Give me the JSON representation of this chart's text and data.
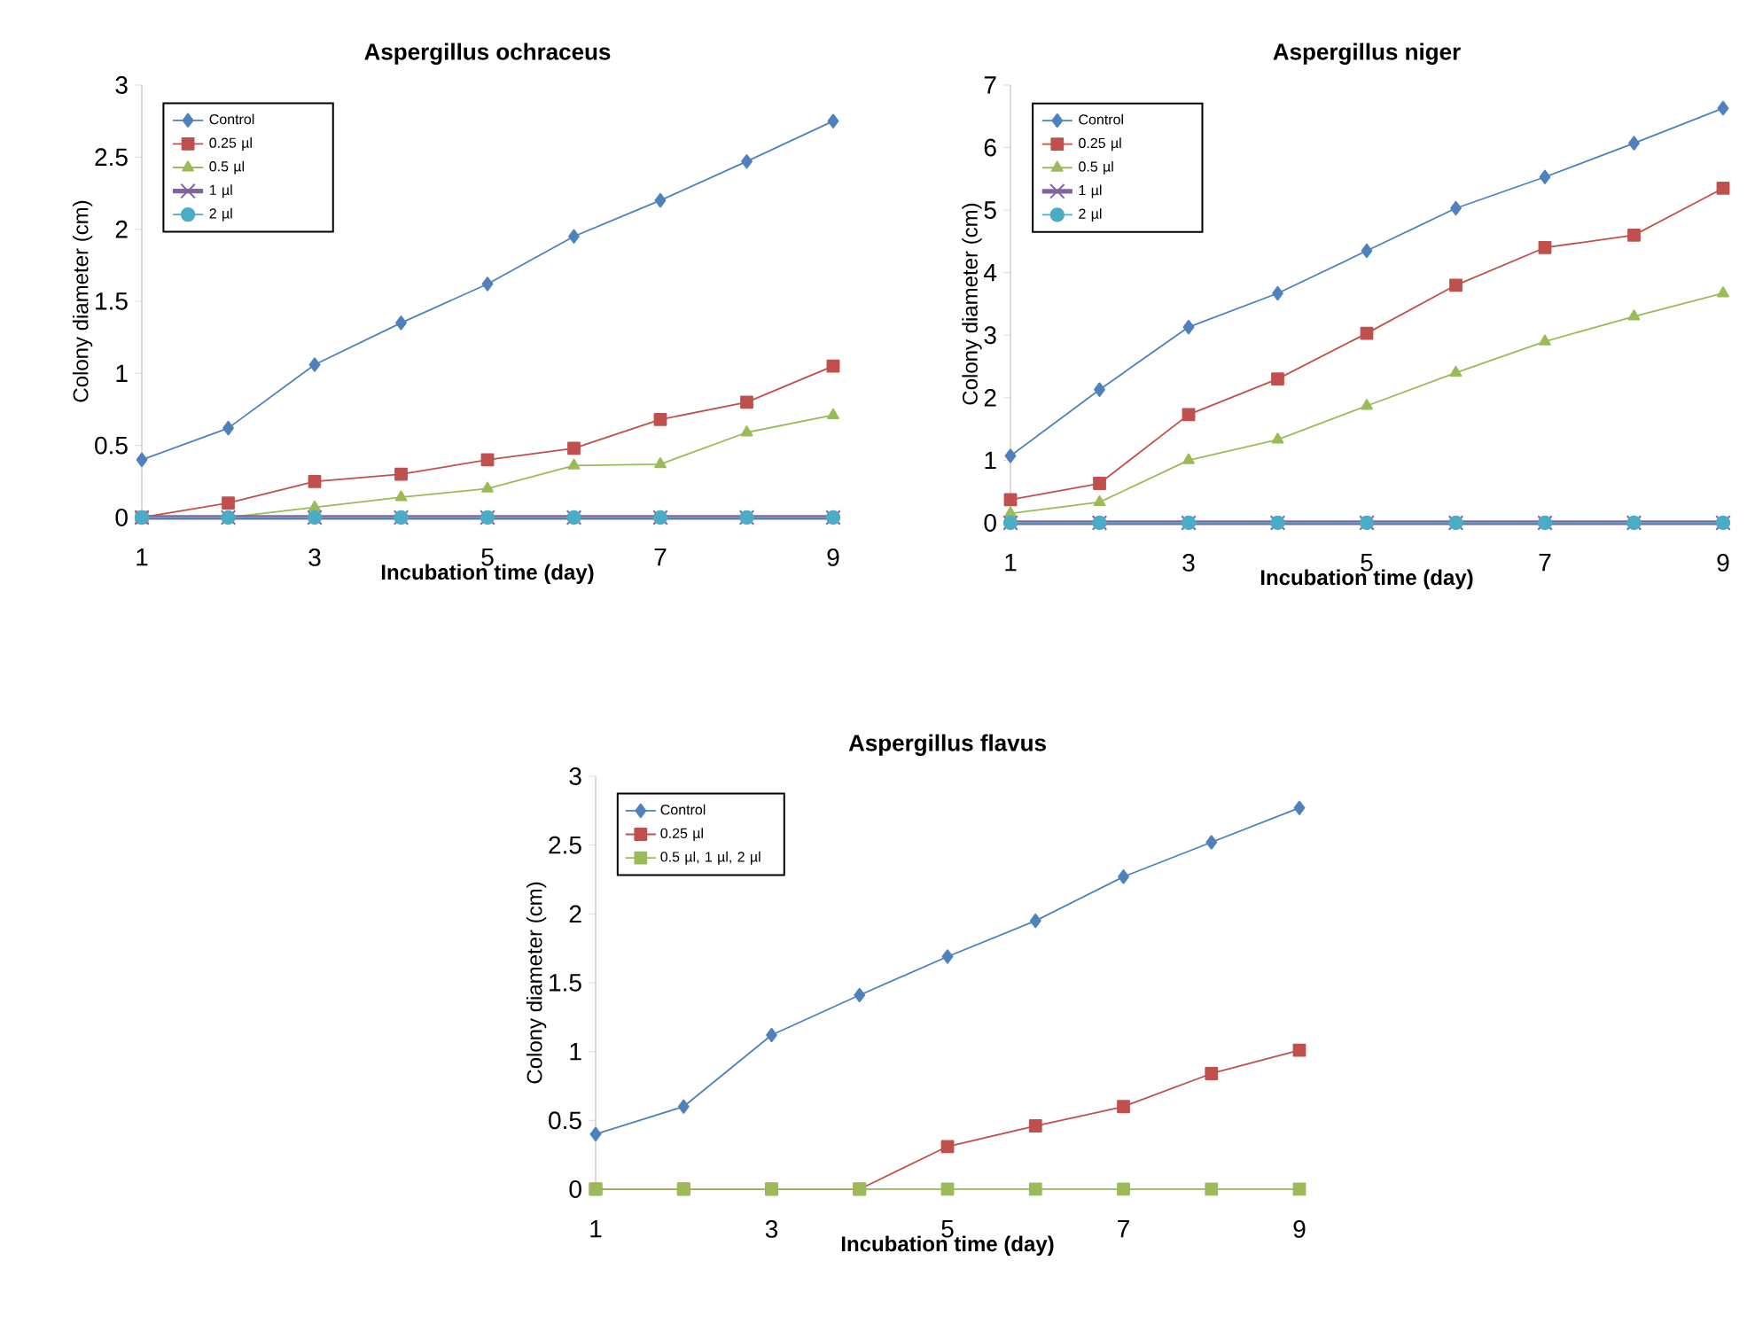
{
  "chart_data": [
    {
      "type": "line",
      "title": "Aspergillus ochraceus",
      "xlabel": "Incubation time (day)",
      "ylabel": "Colony diameter (cm)",
      "x": [
        1,
        2,
        3,
        4,
        5,
        6,
        7,
        8,
        9
      ],
      "xlim": [
        1,
        9
      ],
      "xticks": [
        1,
        3,
        5,
        7,
        9
      ],
      "ylim": [
        0,
        3
      ],
      "yticks": [
        0,
        0.5,
        1,
        1.5,
        2,
        2.5,
        3
      ],
      "legend": "top left",
      "series": [
        {
          "name": "Control",
          "color": "#4f81bd",
          "marker": "diamond",
          "values": [
            0.4,
            0.62,
            1.06,
            1.35,
            1.62,
            1.95,
            2.2,
            2.47,
            2.75
          ]
        },
        {
          "name": "0.25 µl",
          "color": "#c0504d",
          "marker": "square",
          "values": [
            0,
            0.1,
            0.25,
            0.3,
            0.4,
            0.48,
            0.68,
            0.8,
            1.05
          ]
        },
        {
          "name": "0.5  µl",
          "color": "#9bbb59",
          "marker": "triangle",
          "values": [
            0,
            0,
            0.07,
            0.14,
            0.2,
            0.36,
            0.37,
            0.59,
            0.71
          ]
        },
        {
          "name": "1  µl",
          "color": "#8064a2",
          "marker": "cross",
          "values": [
            0,
            0,
            0,
            0,
            0,
            0,
            0,
            0,
            0
          ]
        },
        {
          "name": "2 µl",
          "color": "#4bacc6",
          "marker": "circle",
          "values": [
            0,
            0,
            0,
            0,
            0,
            0,
            0,
            0,
            0
          ]
        }
      ]
    },
    {
      "type": "line",
      "title": "Aspergillus niger",
      "xlabel": "Incubation time (day)",
      "ylabel": "Colony diameter (cm)",
      "x": [
        1,
        2,
        3,
        4,
        5,
        6,
        7,
        8,
        9
      ],
      "xlim": [
        1,
        9
      ],
      "xticks": [
        1,
        3,
        5,
        7,
        9
      ],
      "ylim": [
        0,
        7
      ],
      "yticks": [
        0,
        1,
        2,
        3,
        4,
        5,
        6,
        7
      ],
      "legend": "top left",
      "series": [
        {
          "name": "Control",
          "color": "#4f81bd",
          "marker": "diamond",
          "values": [
            1.07,
            2.13,
            3.13,
            3.67,
            4.35,
            5.03,
            5.53,
            6.07,
            6.63
          ]
        },
        {
          "name": "0.25 µl",
          "color": "#c0504d",
          "marker": "square",
          "values": [
            0.37,
            0.63,
            1.73,
            2.3,
            3.03,
            3.8,
            4.4,
            4.6,
            5.35
          ]
        },
        {
          "name": "0.5  µl",
          "color": "#9bbb59",
          "marker": "triangle",
          "values": [
            0.15,
            0.33,
            1.0,
            1.33,
            1.87,
            2.4,
            2.9,
            3.3,
            3.67
          ]
        },
        {
          "name": "1  µl",
          "color": "#8064a2",
          "marker": "cross",
          "values": [
            0,
            0,
            0,
            0,
            0,
            0,
            0,
            0,
            0
          ]
        },
        {
          "name": "2 µl",
          "color": "#4bacc6",
          "marker": "circle",
          "values": [
            0,
            0,
            0,
            0,
            0,
            0,
            0,
            0,
            0
          ]
        }
      ]
    },
    {
      "type": "line",
      "title": "Aspergillus flavus",
      "xlabel": "Incubation time (day)",
      "ylabel": "Colony diameter (cm)",
      "x": [
        1,
        2,
        3,
        4,
        5,
        6,
        7,
        8,
        9
      ],
      "xlim": [
        1,
        9
      ],
      "xticks": [
        1,
        3,
        5,
        7,
        9
      ],
      "ylim": [
        0,
        3
      ],
      "yticks": [
        0,
        0.5,
        1,
        1.5,
        2,
        2.5,
        3
      ],
      "legend": "top left",
      "series": [
        {
          "name": "Control",
          "color": "#4f81bd",
          "marker": "diamond",
          "values": [
            0.4,
            0.6,
            1.12,
            1.41,
            1.69,
            1.95,
            2.27,
            2.52,
            2.77
          ]
        },
        {
          "name": "0.25 µl",
          "color": "#c0504d",
          "marker": "square",
          "values": [
            0,
            0,
            0,
            0,
            0.31,
            0.46,
            0.6,
            0.84,
            1.01
          ]
        },
        {
          "name": "0.5  µl, 1 µl, 2 µl",
          "color": "#9bbb59",
          "marker": "square",
          "values": [
            0,
            0,
            0,
            0,
            0,
            0,
            0,
            0,
            0
          ]
        }
      ]
    }
  ]
}
